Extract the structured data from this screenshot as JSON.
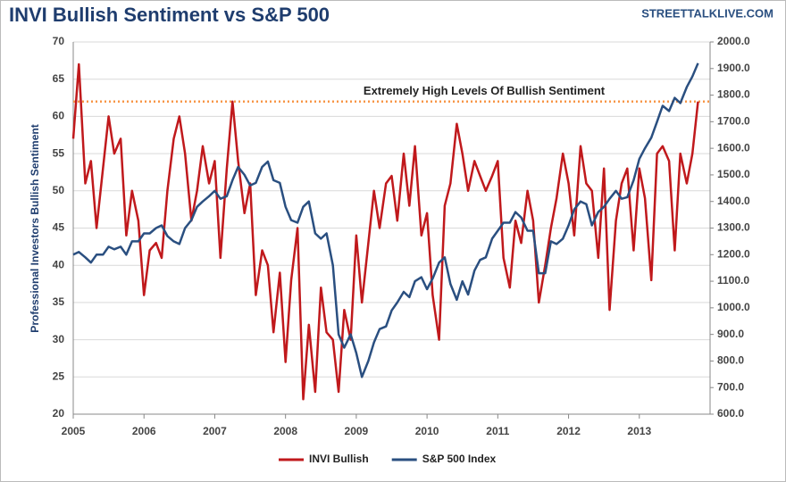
{
  "chart_data": {
    "type": "line",
    "title": "INVI Bullish Sentiment vs S&P 500",
    "source": "STREETTALKLIVE.COM",
    "ylabel": "Professional Investors Bullish Sentiment",
    "annotation": {
      "text": "Extremely High Levels Of Bullish Sentiment",
      "value": 62,
      "color": "#f79646"
    },
    "xlim": [
      2005,
      2014
    ],
    "xticks": [
      2005,
      2006,
      2007,
      2008,
      2009,
      2010,
      2011,
      2012,
      2013
    ],
    "ylim": [
      20,
      70
    ],
    "yticks": [
      20,
      25,
      30,
      35,
      40,
      45,
      50,
      55,
      60,
      65,
      70
    ],
    "y2lim": [
      600,
      2000
    ],
    "y2ticks": [
      {
        "value": 600,
        "label": "600.0"
      },
      {
        "value": 700,
        "label": "700.0"
      },
      {
        "value": 800,
        "label": "800.0"
      },
      {
        "value": 900,
        "label": "900.0"
      },
      {
        "value": 1000,
        "label": "1000.0"
      },
      {
        "value": 1100,
        "label": "1100.0"
      },
      {
        "value": 1200,
        "label": "1200.0"
      },
      {
        "value": 1300,
        "label": "1300.0"
      },
      {
        "value": 1400,
        "label": "1400.0"
      },
      {
        "value": 1500,
        "label": "1500.0"
      },
      {
        "value": 1600,
        "label": "1600.0"
      },
      {
        "value": 1700,
        "label": "1700.0"
      },
      {
        "value": 1800,
        "label": "1800.0"
      },
      {
        "value": 1900,
        "label": "1900.0"
      },
      {
        "value": 2000,
        "label": "2000.0"
      }
    ],
    "grid": true,
    "x": [
      2005.0,
      2005.08,
      2005.17,
      2005.25,
      2005.33,
      2005.42,
      2005.5,
      2005.58,
      2005.67,
      2005.75,
      2005.83,
      2005.92,
      2006.0,
      2006.08,
      2006.17,
      2006.25,
      2006.33,
      2006.42,
      2006.5,
      2006.58,
      2006.67,
      2006.75,
      2006.83,
      2006.92,
      2007.0,
      2007.08,
      2007.17,
      2007.25,
      2007.33,
      2007.42,
      2007.5,
      2007.58,
      2007.67,
      2007.75,
      2007.83,
      2007.92,
      2008.0,
      2008.08,
      2008.17,
      2008.25,
      2008.33,
      2008.42,
      2008.5,
      2008.58,
      2008.67,
      2008.75,
      2008.83,
      2008.92,
      2009.0,
      2009.08,
      2009.17,
      2009.25,
      2009.33,
      2009.42,
      2009.5,
      2009.58,
      2009.67,
      2009.75,
      2009.83,
      2009.92,
      2010.0,
      2010.08,
      2010.17,
      2010.25,
      2010.33,
      2010.42,
      2010.5,
      2010.58,
      2010.67,
      2010.75,
      2010.83,
      2010.92,
      2011.0,
      2011.08,
      2011.17,
      2011.25,
      2011.33,
      2011.42,
      2011.5,
      2011.58,
      2011.67,
      2011.75,
      2011.83,
      2011.92,
      2012.0,
      2012.08,
      2012.17,
      2012.25,
      2012.33,
      2012.42,
      2012.5,
      2012.58,
      2012.67,
      2012.75,
      2012.83,
      2012.92,
      2013.0,
      2013.08,
      2013.17,
      2013.25,
      2013.33,
      2013.42,
      2013.5,
      2013.58,
      2013.67,
      2013.75,
      2013.83
    ],
    "series": [
      {
        "name": "INVI Bullish",
        "color": "#c0191c",
        "values": [
          57,
          67,
          51,
          54,
          45,
          53,
          60,
          55,
          57,
          44,
          50,
          46,
          36,
          42,
          43,
          41,
          50,
          57,
          60,
          55,
          46,
          50,
          56,
          51,
          54,
          41,
          53,
          62,
          54,
          47,
          51,
          36,
          42,
          40,
          31,
          39,
          27,
          38,
          45,
          22,
          32,
          23,
          37,
          31,
          30,
          23,
          34,
          30,
          44,
          35,
          43,
          50,
          45,
          51,
          52,
          46,
          55,
          48,
          56,
          44,
          47,
          36,
          30,
          48,
          51,
          59,
          55,
          50,
          54,
          52,
          50,
          52,
          54,
          41,
          37,
          46,
          43,
          50,
          46,
          35,
          40,
          45,
          49,
          55,
          51,
          44,
          56,
          51,
          50,
          41,
          53,
          34,
          46,
          51,
          53,
          42,
          53,
          49,
          38,
          55,
          56,
          54,
          42,
          55,
          51,
          55,
          62
        ]
      },
      {
        "name": "S&P 500 Index",
        "color": "#2a4f80",
        "axis": "y2",
        "values": [
          1200,
          1210,
          1190,
          1170,
          1200,
          1200,
          1230,
          1220,
          1230,
          1200,
          1250,
          1250,
          1280,
          1280,
          1300,
          1310,
          1270,
          1250,
          1240,
          1300,
          1330,
          1380,
          1400,
          1420,
          1440,
          1410,
          1420,
          1480,
          1530,
          1500,
          1460,
          1470,
          1530,
          1550,
          1480,
          1470,
          1380,
          1330,
          1320,
          1380,
          1400,
          1280,
          1260,
          1280,
          1160,
          900,
          850,
          900,
          830,
          740,
          800,
          870,
          920,
          930,
          990,
          1020,
          1060,
          1040,
          1100,
          1115,
          1070,
          1110,
          1170,
          1190,
          1090,
          1030,
          1100,
          1050,
          1140,
          1180,
          1190,
          1260,
          1290,
          1320,
          1320,
          1360,
          1340,
          1290,
          1290,
          1130,
          1130,
          1250,
          1240,
          1260,
          1310,
          1370,
          1400,
          1390,
          1310,
          1360,
          1380,
          1410,
          1440,
          1410,
          1416,
          1480,
          1560,
          1600,
          1640,
          1700,
          1760,
          1740,
          1790,
          1770,
          1830,
          1870,
          1920
        ]
      }
    ]
  }
}
